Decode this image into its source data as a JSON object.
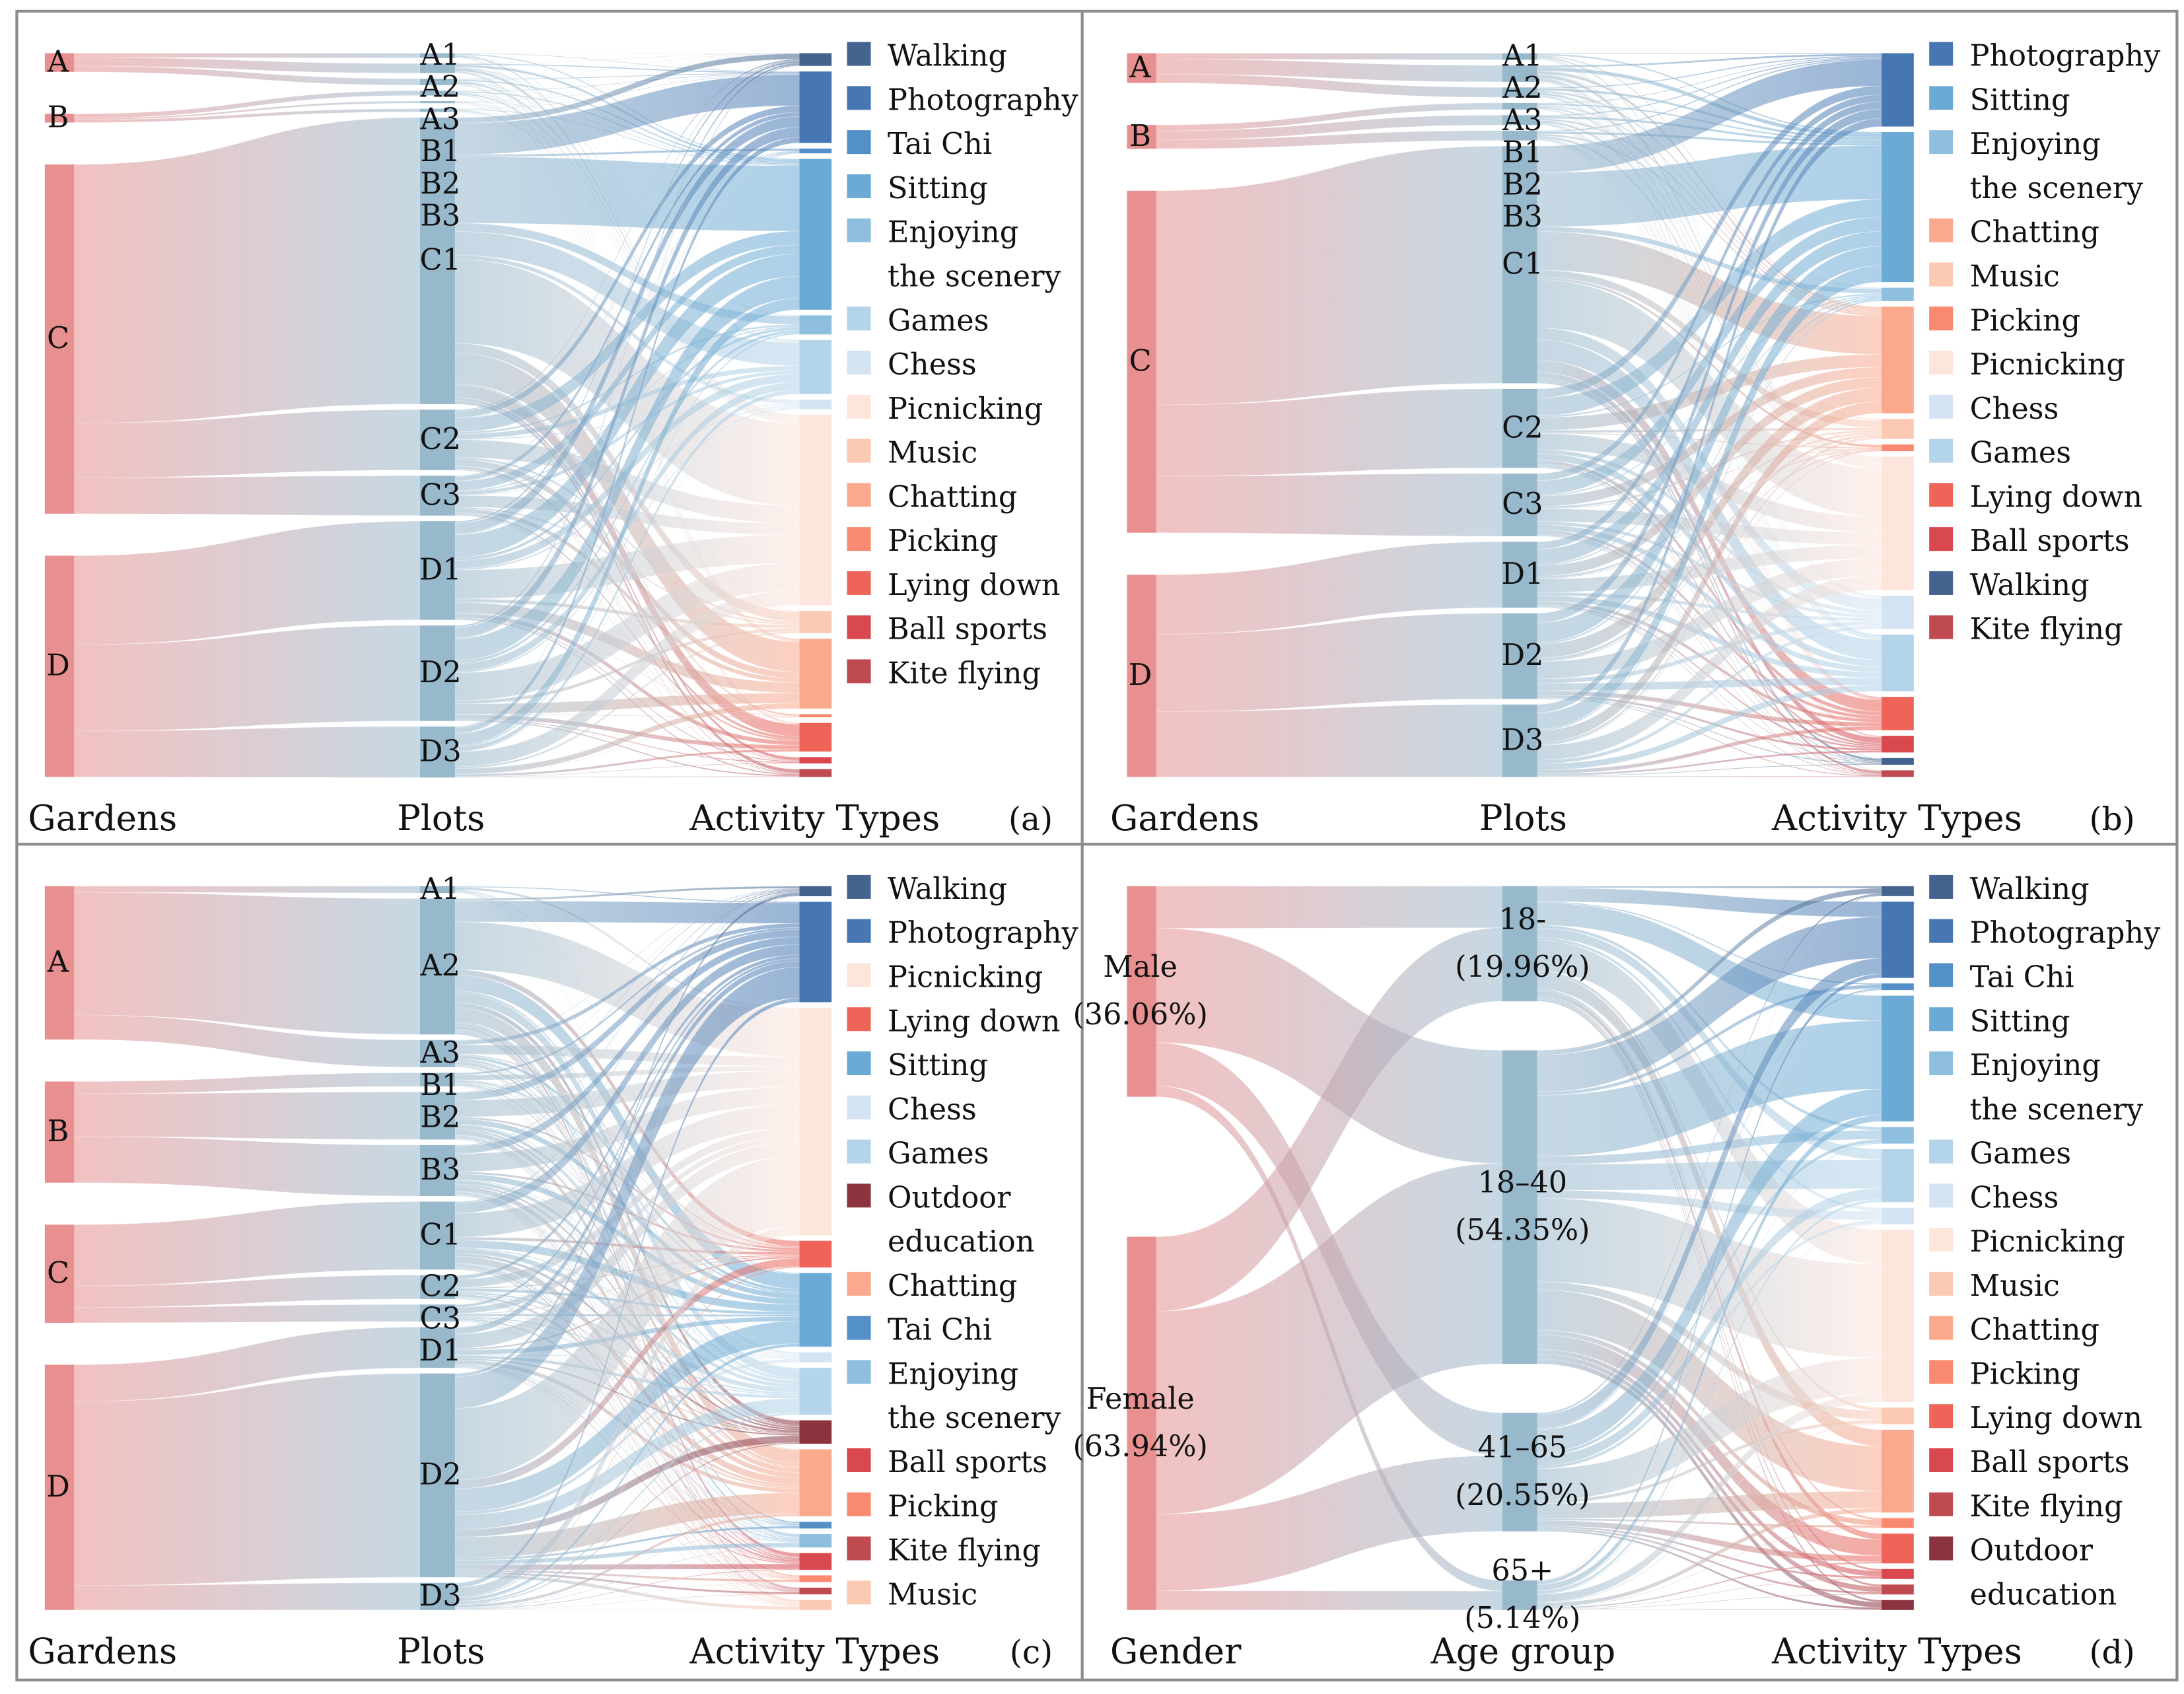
{
  "colors": {
    "garden": "#e88f8f",
    "plot": "#98b8cc",
    "border": "#8c8c8c",
    "Walking": "#43648f",
    "Photography": "#4677b3",
    "Tai Chi": "#5490c8",
    "Sitting": "#6aaad5",
    "Enjoying the scenery": "#8fbfdf",
    "Games": "#b3d4e9",
    "Chess": "#d5e4f2",
    "Picnicking": "#fde5dc",
    "Music": "#fcc9b3",
    "Chatting": "#fba98d",
    "Picking": "#f98a71",
    "Lying down": "#ee6459",
    "Ball sports": "#d9484e",
    "Kite flying": "#bf4b50",
    "Outdoor education": "#8c3340"
  },
  "panels": [
    {
      "tag": "(a)",
      "axis_labels": [
        "Gardens",
        "Plots",
        "Activity Types"
      ],
      "link_mode": [
        "parent",
        "spread"
      ],
      "columns": [
        [
          {
            "label": "A",
            "value": 13
          },
          {
            "label": "B",
            "value": 6
          },
          {
            "label": "C",
            "value": 243
          },
          {
            "label": "D",
            "value": 154
          }
        ],
        [
          {
            "label": "A1",
            "value": 3
          },
          {
            "label": "A2",
            "value": 6
          },
          {
            "label": "A3",
            "value": 4
          },
          {
            "label": "B1",
            "value": 3
          },
          {
            "label": "B2",
            "value": 1
          },
          {
            "label": "B3",
            "value": 2
          },
          {
            "label": "C1",
            "value": 180
          },
          {
            "label": "C2",
            "value": 38
          },
          {
            "label": "C3",
            "value": 25
          },
          {
            "label": "D1",
            "value": 62
          },
          {
            "label": "D2",
            "value": 60
          },
          {
            "label": "D3",
            "value": 32
          }
        ],
        [
          {
            "label": "Walking",
            "value": 8
          },
          {
            "label": "Photography",
            "value": 45
          },
          {
            "label": "Tai Chi",
            "value": 3
          },
          {
            "label": "Sitting",
            "value": 95
          },
          {
            "label": "Enjoying the scenery",
            "value": 12
          },
          {
            "label": "Games",
            "value": 34
          },
          {
            "label": "Chess",
            "value": 6
          },
          {
            "label": "Picnicking",
            "value": 120
          },
          {
            "label": "Music",
            "value": 14
          },
          {
            "label": "Chatting",
            "value": 44
          },
          {
            "label": "Picking",
            "value": 2
          },
          {
            "label": "Lying down",
            "value": 18
          },
          {
            "label": "Ball sports",
            "value": 4
          },
          {
            "label": "Kite flying",
            "value": 5
          }
        ]
      ]
    },
    {
      "tag": "(b)",
      "axis_labels": [
        "Gardens",
        "Plots",
        "Activity Types"
      ],
      "link_mode": [
        "parent",
        "spread"
      ],
      "columns": [
        [
          {
            "label": "A",
            "value": 10
          },
          {
            "label": "B",
            "value": 8
          },
          {
            "label": "C",
            "value": 115
          },
          {
            "label": "D",
            "value": 68
          }
        ],
        [
          {
            "label": "A1",
            "value": 2
          },
          {
            "label": "A2",
            "value": 5
          },
          {
            "label": "A3",
            "value": 3
          },
          {
            "label": "B1",
            "value": 2
          },
          {
            "label": "B2",
            "value": 3
          },
          {
            "label": "B3",
            "value": 3
          },
          {
            "label": "C1",
            "value": 72
          },
          {
            "label": "C2",
            "value": 24
          },
          {
            "label": "C3",
            "value": 19
          },
          {
            "label": "D1",
            "value": 20
          },
          {
            "label": "D2",
            "value": 26
          },
          {
            "label": "D3",
            "value": 22
          }
        ],
        [
          {
            "label": "Photography",
            "value": 22
          },
          {
            "label": "Sitting",
            "value": 45
          },
          {
            "label": "Enjoying the scenery",
            "value": 4
          },
          {
            "label": "Chatting",
            "value": 32
          },
          {
            "label": "Music",
            "value": 6
          },
          {
            "label": "Picking",
            "value": 2
          },
          {
            "label": "Picnicking",
            "value": 40
          },
          {
            "label": "Chess",
            "value": 10
          },
          {
            "label": "Games",
            "value": 17
          },
          {
            "label": "Lying down",
            "value": 10
          },
          {
            "label": "Ball sports",
            "value": 5
          },
          {
            "label": "Walking",
            "value": 2
          },
          {
            "label": "Kite flying",
            "value": 2
          }
        ]
      ]
    },
    {
      "tag": "(c)",
      "axis_labels": [
        "Gardens",
        "Plots",
        "Activity Types"
      ],
      "link_mode": [
        "parent",
        "spread"
      ],
      "columns": [
        [
          {
            "label": "A",
            "value": 50
          },
          {
            "label": "B",
            "value": 33
          },
          {
            "label": "C",
            "value": 32
          },
          {
            "label": "D",
            "value": 80
          }
        ],
        [
          {
            "label": "A1",
            "value": 2
          },
          {
            "label": "A2",
            "value": 40
          },
          {
            "label": "A3",
            "value": 8
          },
          {
            "label": "B1",
            "value": 4
          },
          {
            "label": "B2",
            "value": 14
          },
          {
            "label": "B3",
            "value": 15
          },
          {
            "label": "C1",
            "value": 20
          },
          {
            "label": "C2",
            "value": 7
          },
          {
            "label": "C3",
            "value": 5
          },
          {
            "label": "D1",
            "value": 12
          },
          {
            "label": "D2",
            "value": 60
          },
          {
            "label": "D3",
            "value": 8
          }
        ],
        [
          {
            "label": "Walking",
            "value": 3
          },
          {
            "label": "Photography",
            "value": 30
          },
          {
            "label": "Picnicking",
            "value": 68
          },
          {
            "label": "Lying down",
            "value": 8
          },
          {
            "label": "Sitting",
            "value": 22
          },
          {
            "label": "Chess",
            "value": 3
          },
          {
            "label": "Games",
            "value": 14
          },
          {
            "label": "Outdoor education",
            "value": 7
          },
          {
            "label": "Chatting",
            "value": 20
          },
          {
            "label": "Tai Chi",
            "value": 2
          },
          {
            "label": "Enjoying the scenery",
            "value": 4
          },
          {
            "label": "Ball sports",
            "value": 5
          },
          {
            "label": "Picking",
            "value": 2
          },
          {
            "label": "Kite flying",
            "value": 2
          },
          {
            "label": "Music",
            "value": 3
          }
        ]
      ]
    },
    {
      "tag": "(d)",
      "axis_labels": [
        "Gender",
        "Age group",
        "Activity Types"
      ],
      "link_mode": [
        "spread",
        "spread"
      ],
      "columns": [
        [
          {
            "label": "Male",
            "sub": "(36.06%)",
            "value": 36.06
          },
          {
            "label": "Female",
            "sub": "(63.94%)",
            "value": 63.94
          }
        ],
        [
          {
            "label": "18-",
            "sub": "(19.96%)",
            "value": 19.96
          },
          {
            "label": "18–40",
            "sub": "(54.35%)",
            "value": 54.35
          },
          {
            "label": "41–65",
            "sub": "(20.55%)",
            "value": 20.55
          },
          {
            "label": "65+",
            "sub": "(5.14%)",
            "value": 5.14
          }
        ],
        [
          {
            "label": "Walking",
            "value": 3
          },
          {
            "label": "Photography",
            "value": 23
          },
          {
            "label": "Tai Chi",
            "value": 2
          },
          {
            "label": "Sitting",
            "value": 38
          },
          {
            "label": "Enjoying the scenery",
            "value": 5
          },
          {
            "label": "Games",
            "value": 16
          },
          {
            "label": "Chess",
            "value": 5
          },
          {
            "label": "Picnicking",
            "value": 52
          },
          {
            "label": "Music",
            "value": 5
          },
          {
            "label": "Chatting",
            "value": 25
          },
          {
            "label": "Picking",
            "value": 3
          },
          {
            "label": "Lying down",
            "value": 9
          },
          {
            "label": "Ball sports",
            "value": 3
          },
          {
            "label": "Kite flying",
            "value": 3
          },
          {
            "label": "Outdoor education",
            "value": 3
          }
        ]
      ]
    }
  ]
}
